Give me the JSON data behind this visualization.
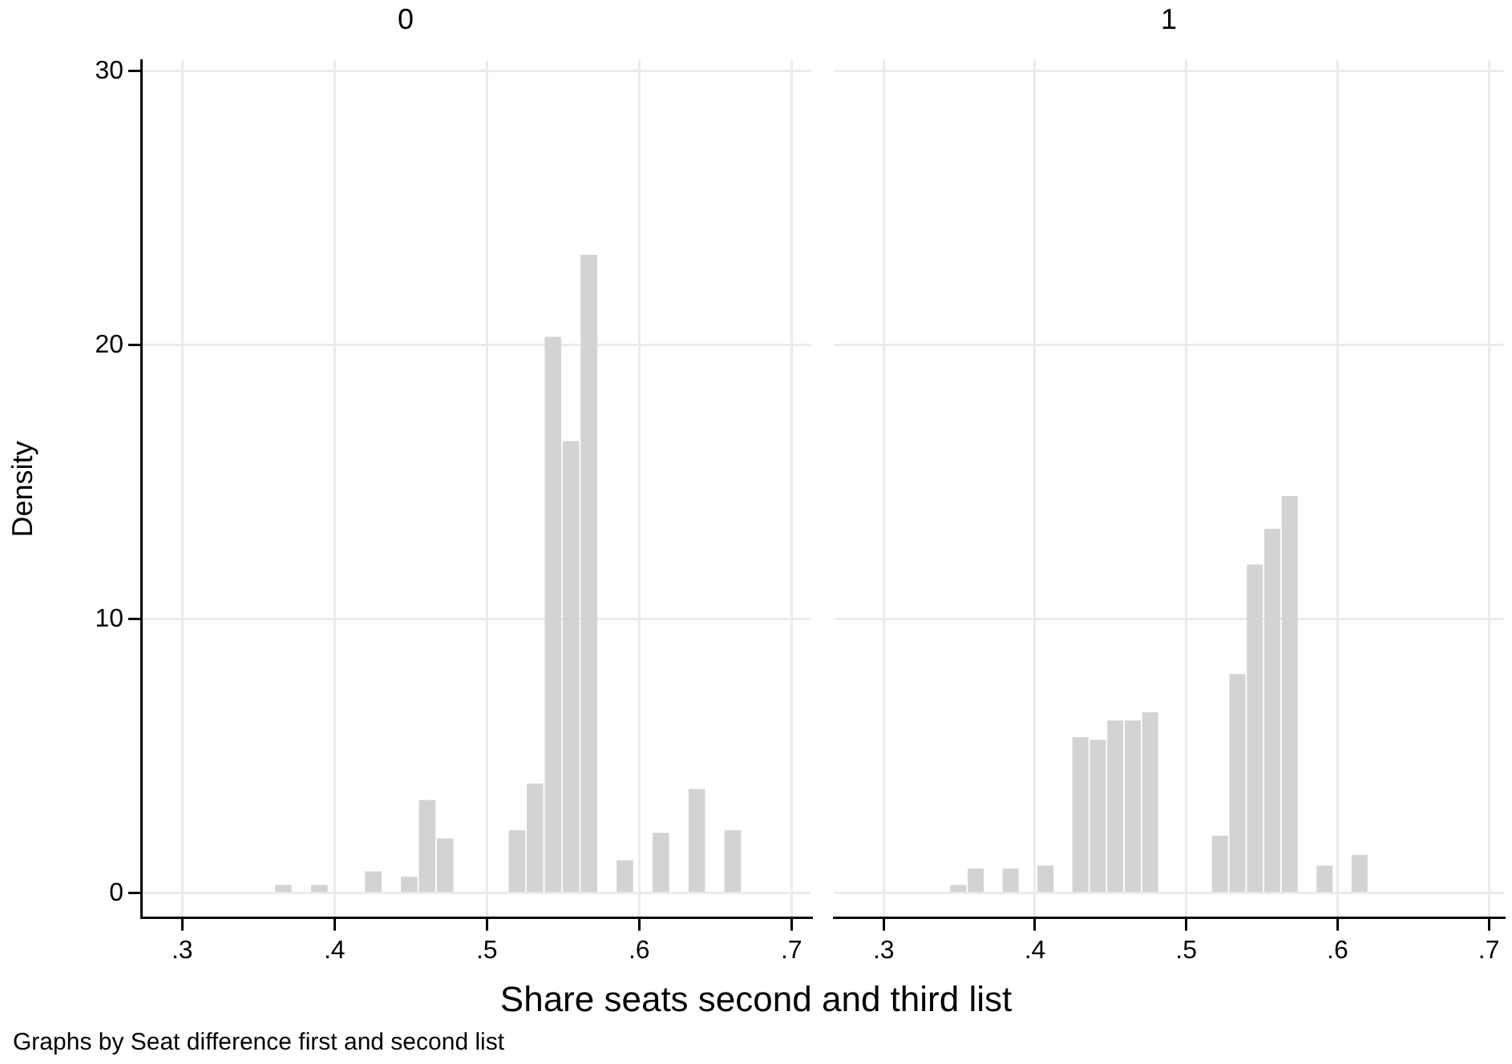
{
  "chart_data": [
    {
      "type": "histogram",
      "title": "0",
      "xlabel": "Share seats second and third list",
      "ylabel": "Density",
      "annotations": [
        "Graphs by Seat difference first and second list"
      ],
      "color": "#d3d3d3",
      "grid": true,
      "legend": false,
      "bins": [
        0.3605,
        0.3723,
        0.3841,
        0.3959,
        0.4077,
        0.4195,
        0.4313,
        0.4431,
        0.4549,
        0.4667,
        0.4785,
        0.4903,
        0.5021,
        0.5139,
        0.5257,
        0.5375,
        0.5493,
        0.5611,
        0.5729,
        0.5847,
        0.5965,
        0.6083,
        0.6201,
        0.6319,
        0.6437,
        0.6555,
        0.6673
      ],
      "values": [
        0.3,
        0,
        0.3,
        null,
        0,
        0.8,
        null,
        0.6,
        3.4,
        2.0,
        0,
        null,
        null,
        2.3,
        4.0,
        20.3,
        16.5,
        23.3,
        null,
        1.2,
        0,
        2.2,
        0,
        3.8,
        0,
        2.3
      ],
      "xlim": [
        0.273,
        0.713
      ],
      "xticks": [
        {
          "value": 0.3,
          "label": ".3"
        },
        {
          "value": 0.4,
          "label": ".4"
        },
        {
          "value": 0.5,
          "label": ".5"
        },
        {
          "value": 0.6,
          "label": ".6"
        },
        {
          "value": 0.7,
          "label": ".7"
        }
      ],
      "ylim": [
        -0.9,
        30.4
      ],
      "yticks": [
        0,
        10,
        20,
        30
      ]
    },
    {
      "type": "histogram",
      "title": "1",
      "color": "#d3d3d3",
      "grid": true,
      "legend": false,
      "tick_labels": "x",
      "bins": [
        0.2859,
        0.2974,
        0.309,
        0.3205,
        0.332,
        0.3436,
        0.3551,
        0.3666,
        0.3781,
        0.3897,
        0.4012,
        0.4127,
        0.4243,
        0.4358,
        0.4473,
        0.4589,
        0.4704,
        0.4819,
        0.4934,
        0.505,
        0.5165,
        0.528,
        0.5396,
        0.5511,
        0.5626,
        0.5742,
        0.5857,
        0.5972,
        0.6087,
        0.6203
      ],
      "values": [
        0,
        null,
        null,
        null,
        null,
        0.3,
        0.9,
        null,
        0.9,
        0,
        1.0,
        null,
        5.7,
        5.6,
        6.3,
        6.3,
        6.6,
        0,
        null,
        null,
        2.1,
        8.0,
        12.0,
        13.3,
        14.5,
        null,
        1.0,
        null,
        1.4
      ],
      "xlim": [
        0.267,
        0.71
      ],
      "xticks": [
        {
          "value": 0.3,
          "label": ".3"
        },
        {
          "value": 0.4,
          "label": ".4"
        },
        {
          "value": 0.5,
          "label": ".5"
        },
        {
          "value": 0.6,
          "label": ".6"
        },
        {
          "value": 0.7,
          "label": ".7"
        }
      ],
      "ylim": [
        -0.9,
        30.4
      ],
      "yticks": [
        0,
        10,
        20,
        30
      ]
    }
  ]
}
